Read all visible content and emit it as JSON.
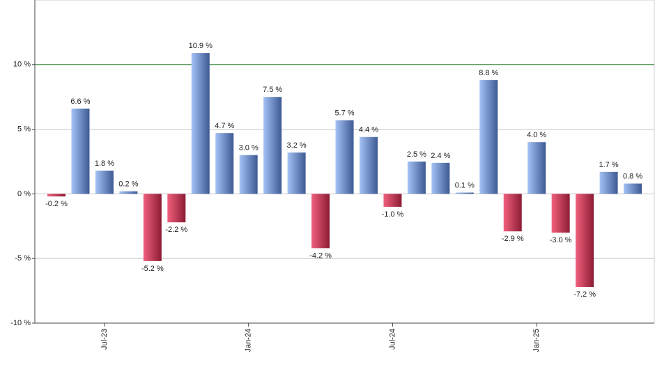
{
  "chart_data": {
    "type": "bar",
    "categories": [
      null,
      null,
      "Jul-23",
      null,
      null,
      null,
      null,
      null,
      "Jan-24",
      null,
      null,
      null,
      null,
      null,
      "Jul-24",
      null,
      null,
      null,
      null,
      null,
      "Jan-25",
      null,
      null,
      null,
      null
    ],
    "values": [
      -0.2,
      6.6,
      1.8,
      0.2,
      -5.2,
      -2.2,
      10.9,
      4.7,
      3.0,
      7.5,
      3.2,
      -4.2,
      5.7,
      4.4,
      -1.0,
      2.5,
      2.4,
      0.1,
      8.8,
      -2.9,
      4.0,
      -3.0,
      -7.2,
      1.7,
      0.8
    ],
    "value_labels": [
      "-0.2 %",
      "6.6 %",
      "1.8 %",
      "0.2 %",
      "-5.2 %",
      "-2.2 %",
      "10.9 %",
      "4.7 %",
      "3.0 %",
      "7.5 %",
      "3.2 %",
      "-4.2 %",
      "5.7 %",
      "4.4 %",
      "-1.0 %",
      "2.5 %",
      "2.4 %",
      "0.1 %",
      "8.8 %",
      "-2.9 %",
      "4.0 %",
      "-3.0 %",
      "-7.2 %",
      "1.7 %",
      "0.8 %"
    ],
    "positive_color": [
      "#a4c2f4",
      "#3d5a94"
    ],
    "negative_color": [
      "#f2607e",
      "#8c1c34"
    ],
    "ylim": [
      -10,
      15
    ],
    "yticks": [
      {
        "value": -10,
        "label": "-10 %"
      },
      {
        "value": -5,
        "label": "-5 %"
      },
      {
        "value": 0,
        "label": "0 %"
      },
      {
        "value": 5,
        "label": "5 %"
      },
      {
        "value": 10,
        "label": "10 %"
      }
    ],
    "reference_line": {
      "value": 10,
      "color": "#2e7d32"
    },
    "grid": true
  }
}
